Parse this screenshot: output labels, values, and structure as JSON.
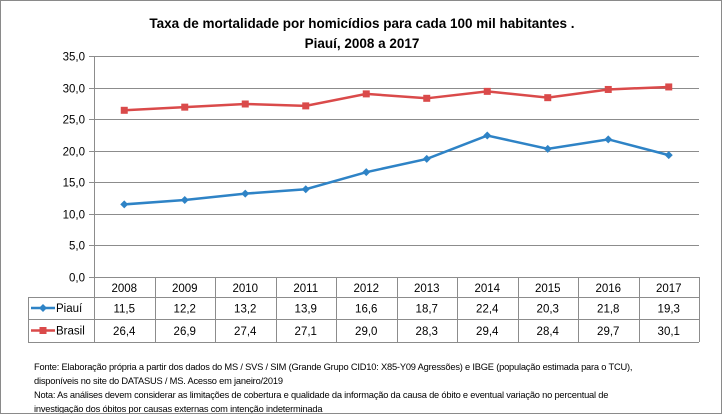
{
  "chart_data": {
    "type": "line",
    "title": [
      "Taxa de mortalidade por homicídios para cada 100 mil habitantes .",
      "Piauí, 2008 a 2017"
    ],
    "categories": [
      "2008",
      "2009",
      "2010",
      "2011",
      "2012",
      "2013",
      "2014",
      "2015",
      "2016",
      "2017"
    ],
    "series": [
      {
        "name": "Piauí",
        "color": "#2E83C6",
        "marker": "diamond",
        "values": [
          11.5,
          12.2,
          13.2,
          13.9,
          16.6,
          18.7,
          22.4,
          20.3,
          21.8,
          19.3
        ],
        "labels": [
          "11,5",
          "12,2",
          "13,2",
          "13,9",
          "16,6",
          "18,7",
          "22,4",
          "20,3",
          "21,8",
          "19,3"
        ]
      },
      {
        "name": "Brasil",
        "color": "#DA4A4A",
        "marker": "square",
        "values": [
          26.4,
          26.9,
          27.4,
          27.1,
          29.0,
          28.3,
          29.4,
          28.4,
          29.7,
          30.1
        ],
        "labels": [
          "26,4",
          "26,9",
          "27,4",
          "27,1",
          "29,0",
          "28,3",
          "29,4",
          "28,4",
          "29,7",
          "30,1"
        ]
      }
    ],
    "ylim": [
      0,
      35
    ],
    "yticks": [
      "0,0",
      "5,0",
      "10,0",
      "15,0",
      "20,0",
      "25,0",
      "30,0",
      "35,0"
    ],
    "grid": true,
    "legend": "data-table"
  },
  "notes": [
    "Fonte: Elaboração própria a partir dos dados do MS / SVS / SIM (Grande Grupo CID10: X85-Y09 Agressões) e IBGE (população estimada para o TCU),",
    "disponíveis no site do DATASUS / MS. Acesso em janeiro/2019",
    "Nota:  As análises devem considerar as limitações de cobertura e qualidade da informação da causa de óbito e eventual variação no percentual de",
    "investigação dos óbitos por causas externas com intenção  indeterminada"
  ]
}
